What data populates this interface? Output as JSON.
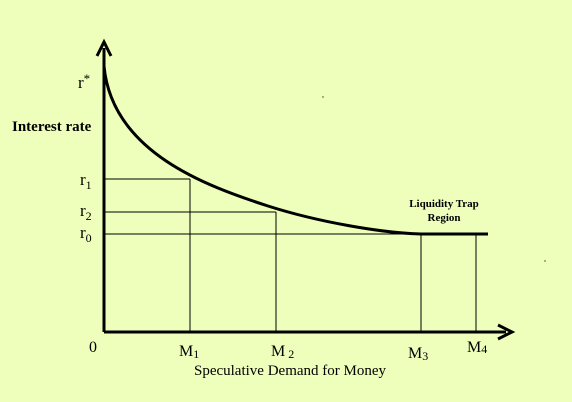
{
  "colors": {
    "background": "#eeffbb",
    "ink": "#000000"
  },
  "diagram": {
    "y_axis_label": "Interest rate",
    "x_axis_label": "Speculative Demand for Money",
    "origin_label": "0",
    "annotation": {
      "line1": "Liquidity Trap",
      "line2": "Region"
    },
    "y_markers": [
      {
        "label": "r*",
        "base": "r",
        "sub": "",
        "sup": "*"
      },
      {
        "label": "r1",
        "base": "r",
        "sub": "1",
        "sup": ""
      },
      {
        "label": "r2",
        "base": "r",
        "sub": "2",
        "sup": ""
      },
      {
        "label": "r0",
        "base": "r",
        "sub": "0",
        "sup": ""
      }
    ],
    "x_markers": [
      {
        "label": "M1",
        "base": "M",
        "sub": "1"
      },
      {
        "label": "M2",
        "base": "M",
        "sub": "2"
      },
      {
        "label": "M3",
        "base": "M",
        "sub": "3"
      },
      {
        "label": "M4",
        "base": "M",
        "sub": "4"
      }
    ]
  }
}
